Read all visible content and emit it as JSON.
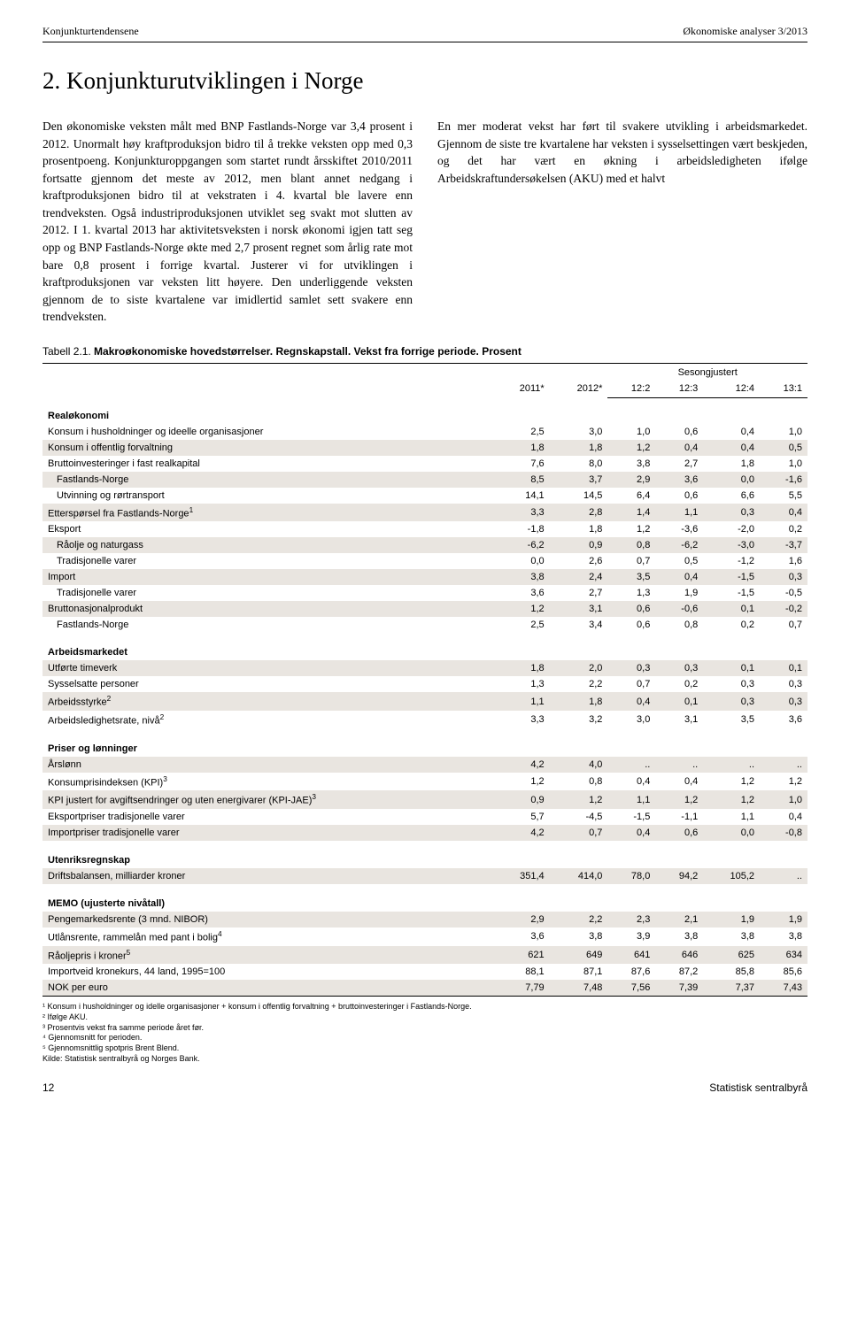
{
  "header": {
    "left": "Konjunkturtendensene",
    "right": "Økonomiske analyser 3/2013"
  },
  "title": "2. Konjunkturutviklingen i Norge",
  "body_paragraphs": [
    "Den økonomiske veksten målt med BNP Fastlands-Norge var 3,4 prosent i 2012. Unormalt høy kraftproduksjon bidro til å trekke veksten opp med 0,3 prosentpoeng. Konjunkturoppgangen som startet rundt årsskiftet 2010/2011 fortsatte gjennom det meste av 2012, men blant annet nedgang i kraftproduksjonen bidro til at vekstraten i 4. kvartal ble lavere enn trendveksten. Også industriproduksjonen utviklet seg svakt mot slutten av 2012. I 1. kvartal 2013 har aktivitetsveksten i norsk økonomi igjen tatt seg opp og BNP Fastlands-Norge økte med 2,7 prosent regnet som årlig rate mot bare 0,8 prosent i forrige kvartal. Justerer vi for utviklingen i kraftproduksjonen var veksten litt høyere. Den underliggende veksten gjennom de to siste kvartalene var imidlertid samlet sett svakere enn trendveksten.",
    "En mer moderat vekst har ført til svakere utvikling i arbeidsmarkedet. Gjennom de siste tre kvartalene har veksten i sysselsettingen vært beskjeden, og det har vært en økning i arbeidsledigheten ifølge Arbeidskraftundersøkelsen (AKU) med et halvt"
  ],
  "table": {
    "caption_prefix": "Tabell 2.1.",
    "caption_bold": "Makroøkonomiske hovedstørrelser. Regnskapstall. Vekst fra forrige periode. Prosent",
    "head": {
      "y1": "2011*",
      "y2": "2012*",
      "season": "Sesongjustert",
      "qcols": [
        "12:2",
        "12:3",
        "12:4",
        "13:1"
      ]
    },
    "style": {
      "shaded_bg": "#e9e5e0",
      "rule": "#000000"
    }
  },
  "sections": [
    {
      "name": "Realøkonomi",
      "rows": [
        {
          "label": "Konsum i husholdninger og ideelle organisasjoner",
          "v": [
            "2,5",
            "3,0",
            "1,0",
            "0,6",
            "0,4",
            "1,0"
          ],
          "shaded": false
        },
        {
          "label": "Konsum i offentlig forvaltning",
          "v": [
            "1,8",
            "1,8",
            "1,2",
            "0,4",
            "0,4",
            "0,5"
          ],
          "shaded": true
        },
        {
          "label": "Bruttoinvesteringer i fast realkapital",
          "v": [
            "7,6",
            "8,0",
            "3,8",
            "2,7",
            "1,8",
            "1,0"
          ],
          "shaded": false
        },
        {
          "label": "Fastlands-Norge",
          "indent": true,
          "v": [
            "8,5",
            "3,7",
            "2,9",
            "3,6",
            "0,0",
            "-1,6"
          ],
          "shaded": true
        },
        {
          "label": "Utvinning og rørtransport",
          "indent": true,
          "v": [
            "14,1",
            "14,5",
            "6,4",
            "0,6",
            "6,6",
            "5,5"
          ],
          "shaded": false
        },
        {
          "label_html": "Etterspørsel fra Fastlands-Norge<sup>1</sup>",
          "v": [
            "3,3",
            "2,8",
            "1,4",
            "1,1",
            "0,3",
            "0,4"
          ],
          "shaded": true
        },
        {
          "label": "Eksport",
          "v": [
            "-1,8",
            "1,8",
            "1,2",
            "-3,6",
            "-2,0",
            "0,2"
          ],
          "shaded": false
        },
        {
          "label": "Råolje og naturgass",
          "indent": true,
          "v": [
            "-6,2",
            "0,9",
            "0,8",
            "-6,2",
            "-3,0",
            "-3,7"
          ],
          "shaded": true
        },
        {
          "label": "Tradisjonelle varer",
          "indent": true,
          "v": [
            "0,0",
            "2,6",
            "0,7",
            "0,5",
            "-1,2",
            "1,6"
          ],
          "shaded": false
        },
        {
          "label": "Import",
          "v": [
            "3,8",
            "2,4",
            "3,5",
            "0,4",
            "-1,5",
            "0,3"
          ],
          "shaded": true
        },
        {
          "label": "Tradisjonelle varer",
          "indent": true,
          "v": [
            "3,6",
            "2,7",
            "1,3",
            "1,9",
            "-1,5",
            "-0,5"
          ],
          "shaded": false
        },
        {
          "label": "Bruttonasjonalprodukt",
          "v": [
            "1,2",
            "3,1",
            "0,6",
            "-0,6",
            "0,1",
            "-0,2"
          ],
          "shaded": true
        },
        {
          "label": "Fastlands-Norge",
          "indent": true,
          "v": [
            "2,5",
            "3,4",
            "0,6",
            "0,8",
            "0,2",
            "0,7"
          ],
          "shaded": false
        }
      ]
    },
    {
      "name": "Arbeidsmarkedet",
      "rows": [
        {
          "label": "Utførte timeverk",
          "v": [
            "1,8",
            "2,0",
            "0,3",
            "0,3",
            "0,1",
            "0,1"
          ],
          "shaded": true
        },
        {
          "label": "Sysselsatte personer",
          "v": [
            "1,3",
            "2,2",
            "0,7",
            "0,2",
            "0,3",
            "0,3"
          ],
          "shaded": false
        },
        {
          "label_html": "Arbeidsstyrke<sup>2</sup>",
          "v": [
            "1,1",
            "1,8",
            "0,4",
            "0,1",
            "0,3",
            "0,3"
          ],
          "shaded": true
        },
        {
          "label_html": "Arbeidsledighetsrate, nivå<sup>2</sup>",
          "v": [
            "3,3",
            "3,2",
            "3,0",
            "3,1",
            "3,5",
            "3,6"
          ],
          "shaded": false
        }
      ]
    },
    {
      "name": "Priser og lønninger",
      "rows": [
        {
          "label": "Årslønn",
          "v": [
            "4,2",
            "4,0",
            "..",
            "..",
            "..",
            ".."
          ],
          "shaded": true
        },
        {
          "label_html": "Konsumprisindeksen (KPI)<sup>3</sup>",
          "v": [
            "1,2",
            "0,8",
            "0,4",
            "0,4",
            "1,2",
            "1,2"
          ],
          "shaded": false
        },
        {
          "label_html": "KPI justert for avgiftsendringer og uten energivarer (KPI-JAE)<sup>3</sup>",
          "v": [
            "0,9",
            "1,2",
            "1,1",
            "1,2",
            "1,2",
            "1,0"
          ],
          "shaded": true
        },
        {
          "label": "Eksportpriser tradisjonelle varer",
          "v": [
            "5,7",
            "-4,5",
            "-1,5",
            "-1,1",
            "1,1",
            "0,4"
          ],
          "shaded": false
        },
        {
          "label": "Importpriser tradisjonelle varer",
          "v": [
            "4,2",
            "0,7",
            "0,4",
            "0,6",
            "0,0",
            "-0,8"
          ],
          "shaded": true
        }
      ]
    },
    {
      "name": "Utenriksregnskap",
      "rows": [
        {
          "label": "Driftsbalansen, milliarder kroner",
          "v": [
            "351,4",
            "414,0",
            "78,0",
            "94,2",
            "105,2",
            ".."
          ],
          "shaded": true
        }
      ]
    },
    {
      "name": "MEMO (ujusterte nivåtall)",
      "rows": [
        {
          "label": "Pengemarkedsrente (3 mnd. NIBOR)",
          "v": [
            "2,9",
            "2,2",
            "2,3",
            "2,1",
            "1,9",
            "1,9"
          ],
          "shaded": true
        },
        {
          "label_html": "Utlånsrente, rammelån med pant i bolig<sup>4</sup>",
          "v": [
            "3,6",
            "3,8",
            "3,9",
            "3,8",
            "3,8",
            "3,8"
          ],
          "shaded": false
        },
        {
          "label_html": "Råoljepris i kroner<sup>5</sup>",
          "v": [
            "621",
            "649",
            "641",
            "646",
            "625",
            "634"
          ],
          "shaded": true
        },
        {
          "label": "Importveid kronekurs, 44 land, 1995=100",
          "v": [
            "88,1",
            "87,1",
            "87,6",
            "87,2",
            "85,8",
            "85,6"
          ],
          "shaded": false
        },
        {
          "label": "NOK per euro",
          "v": [
            "7,79",
            "7,48",
            "7,56",
            "7,39",
            "7,37",
            "7,43"
          ],
          "shaded": true
        }
      ]
    }
  ],
  "footnotes": [
    "¹ Konsum i husholdninger og idelle organisasjoner + konsum i offentlig forvaltning + bruttoinvesteringer i Fastlands-Norge.",
    "² Ifølge AKU.",
    "³ Prosentvis vekst fra samme periode året før.",
    "⁴ Gjennomsnitt for perioden.",
    "⁵ Gjennomsnittlig spotpris Brent Blend.",
    "Kilde: Statistisk sentralbyrå og Norges Bank."
  ],
  "footer": {
    "page": "12",
    "org": "Statistisk sentralbyrå"
  }
}
